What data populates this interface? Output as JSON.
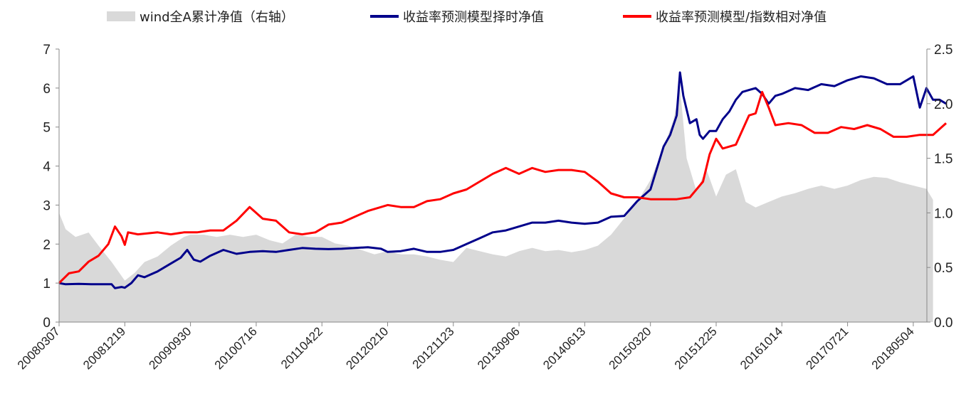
{
  "chart_data": {
    "type": "line",
    "legend_placement": "top",
    "grid": false,
    "x_tick_labels": [
      "20080307",
      "20081219",
      "20090930",
      "20100716",
      "20110422",
      "20120210",
      "20121123",
      "20130906",
      "20140613",
      "20150320",
      "20151225",
      "20161014",
      "20170721",
      "20180504"
    ],
    "left_axis": {
      "ylim": [
        0,
        7
      ],
      "ticks": [
        "0",
        "1",
        "2",
        "3",
        "4",
        "5",
        "6",
        "7"
      ]
    },
    "right_axis": {
      "ylim": [
        0,
        2.5
      ],
      "ticks": [
        "0.0",
        "0.5",
        "1.0",
        "1.5",
        "2.0",
        "2.5"
      ]
    },
    "series": [
      {
        "name": "wind全A累计净值（右轴）",
        "kind": "area",
        "axis": "right",
        "color": "#d9d9d9",
        "points": [
          [
            0,
            1.0
          ],
          [
            0.1,
            0.85
          ],
          [
            0.25,
            0.78
          ],
          [
            0.45,
            0.82
          ],
          [
            0.6,
            0.7
          ],
          [
            0.8,
            0.55
          ],
          [
            1.0,
            0.38
          ],
          [
            1.15,
            0.45
          ],
          [
            1.3,
            0.55
          ],
          [
            1.5,
            0.6
          ],
          [
            1.7,
            0.7
          ],
          [
            1.9,
            0.78
          ],
          [
            2.0,
            0.8
          ],
          [
            2.2,
            0.8
          ],
          [
            2.4,
            0.78
          ],
          [
            2.6,
            0.8
          ],
          [
            2.8,
            0.78
          ],
          [
            3.0,
            0.8
          ],
          [
            3.2,
            0.75
          ],
          [
            3.4,
            0.72
          ],
          [
            3.6,
            0.8
          ],
          [
            3.8,
            0.78
          ],
          [
            4.0,
            0.78
          ],
          [
            4.2,
            0.72
          ],
          [
            4.4,
            0.7
          ],
          [
            4.6,
            0.66
          ],
          [
            4.8,
            0.62
          ],
          [
            5.0,
            0.65
          ],
          [
            5.2,
            0.62
          ],
          [
            5.4,
            0.62
          ],
          [
            5.6,
            0.6
          ],
          [
            5.8,
            0.57
          ],
          [
            6.0,
            0.55
          ],
          [
            6.2,
            0.68
          ],
          [
            6.4,
            0.65
          ],
          [
            6.6,
            0.62
          ],
          [
            6.8,
            0.6
          ],
          [
            7.0,
            0.65
          ],
          [
            7.2,
            0.68
          ],
          [
            7.4,
            0.65
          ],
          [
            7.6,
            0.66
          ],
          [
            7.8,
            0.64
          ],
          [
            8.0,
            0.66
          ],
          [
            8.2,
            0.7
          ],
          [
            8.4,
            0.8
          ],
          [
            8.6,
            0.95
          ],
          [
            8.8,
            1.1
          ],
          [
            9.0,
            1.3
          ],
          [
            9.2,
            1.6
          ],
          [
            9.35,
            1.85
          ],
          [
            9.45,
            2.15
          ],
          [
            9.55,
            1.5
          ],
          [
            9.7,
            1.2
          ],
          [
            9.85,
            1.4
          ],
          [
            10.0,
            1.15
          ],
          [
            10.15,
            1.35
          ],
          [
            10.3,
            1.4
          ],
          [
            10.45,
            1.1
          ],
          [
            10.6,
            1.05
          ],
          [
            10.8,
            1.1
          ],
          [
            11.0,
            1.15
          ],
          [
            11.2,
            1.18
          ],
          [
            11.4,
            1.22
          ],
          [
            11.6,
            1.25
          ],
          [
            11.8,
            1.22
          ],
          [
            12.0,
            1.25
          ],
          [
            12.2,
            1.3
          ],
          [
            12.4,
            1.33
          ],
          [
            12.6,
            1.32
          ],
          [
            12.8,
            1.28
          ],
          [
            13.0,
            1.25
          ],
          [
            13.2,
            1.22
          ],
          [
            13.3,
            1.12
          ]
        ]
      },
      {
        "name": "收益率预测模型择时净值",
        "kind": "line",
        "axis": "left",
        "color": "#00008b",
        "points": [
          [
            0,
            1.0
          ],
          [
            0.1,
            0.97
          ],
          [
            0.3,
            0.98
          ],
          [
            0.5,
            0.97
          ],
          [
            0.7,
            0.97
          ],
          [
            0.8,
            0.97
          ],
          [
            0.85,
            0.87
          ],
          [
            0.95,
            0.9
          ],
          [
            1.0,
            0.88
          ],
          [
            1.1,
            1.0
          ],
          [
            1.2,
            1.2
          ],
          [
            1.3,
            1.15
          ],
          [
            1.5,
            1.3
          ],
          [
            1.7,
            1.5
          ],
          [
            1.85,
            1.65
          ],
          [
            1.95,
            1.85
          ],
          [
            2.05,
            1.6
          ],
          [
            2.15,
            1.55
          ],
          [
            2.3,
            1.7
          ],
          [
            2.5,
            1.85
          ],
          [
            2.7,
            1.75
          ],
          [
            2.9,
            1.8
          ],
          [
            3.1,
            1.82
          ],
          [
            3.3,
            1.8
          ],
          [
            3.5,
            1.85
          ],
          [
            3.7,
            1.9
          ],
          [
            3.9,
            1.88
          ],
          [
            4.1,
            1.87
          ],
          [
            4.3,
            1.88
          ],
          [
            4.5,
            1.9
          ],
          [
            4.7,
            1.92
          ],
          [
            4.9,
            1.88
          ],
          [
            5.0,
            1.8
          ],
          [
            5.2,
            1.82
          ],
          [
            5.4,
            1.88
          ],
          [
            5.6,
            1.8
          ],
          [
            5.8,
            1.8
          ],
          [
            6.0,
            1.85
          ],
          [
            6.2,
            2.0
          ],
          [
            6.4,
            2.15
          ],
          [
            6.6,
            2.3
          ],
          [
            6.8,
            2.35
          ],
          [
            7.0,
            2.45
          ],
          [
            7.2,
            2.55
          ],
          [
            7.4,
            2.55
          ],
          [
            7.6,
            2.6
          ],
          [
            7.8,
            2.55
          ],
          [
            8.0,
            2.52
          ],
          [
            8.2,
            2.55
          ],
          [
            8.4,
            2.7
          ],
          [
            8.6,
            2.72
          ],
          [
            8.8,
            3.1
          ],
          [
            9.0,
            3.4
          ],
          [
            9.2,
            4.5
          ],
          [
            9.3,
            4.8
          ],
          [
            9.4,
            5.3
          ],
          [
            9.45,
            6.4
          ],
          [
            9.5,
            5.8
          ],
          [
            9.6,
            5.1
          ],
          [
            9.7,
            5.2
          ],
          [
            9.75,
            4.8
          ],
          [
            9.8,
            4.7
          ],
          [
            9.9,
            4.9
          ],
          [
            10.0,
            4.9
          ],
          [
            10.1,
            5.2
          ],
          [
            10.2,
            5.4
          ],
          [
            10.3,
            5.7
          ],
          [
            10.4,
            5.9
          ],
          [
            10.5,
            5.95
          ],
          [
            10.6,
            6.0
          ],
          [
            10.7,
            5.85
          ],
          [
            10.8,
            5.6
          ],
          [
            10.9,
            5.8
          ],
          [
            11.0,
            5.85
          ],
          [
            11.2,
            6.0
          ],
          [
            11.4,
            5.95
          ],
          [
            11.6,
            6.1
          ],
          [
            11.8,
            6.05
          ],
          [
            12.0,
            6.2
          ],
          [
            12.2,
            6.3
          ],
          [
            12.4,
            6.25
          ],
          [
            12.6,
            6.1
          ],
          [
            12.8,
            6.1
          ],
          [
            13.0,
            6.3
          ],
          [
            13.1,
            5.5
          ],
          [
            13.2,
            6.0
          ],
          [
            13.3,
            5.7
          ],
          [
            13.4,
            5.7
          ],
          [
            13.5,
            5.6
          ]
        ]
      },
      {
        "name": "收益率预测模型/指数相对净值",
        "kind": "line",
        "axis": "left",
        "color": "#ff0000",
        "points": [
          [
            0,
            1.0
          ],
          [
            0.15,
            1.25
          ],
          [
            0.3,
            1.3
          ],
          [
            0.45,
            1.55
          ],
          [
            0.6,
            1.7
          ],
          [
            0.75,
            2.0
          ],
          [
            0.85,
            2.45
          ],
          [
            0.95,
            2.2
          ],
          [
            1.0,
            1.98
          ],
          [
            1.05,
            2.3
          ],
          [
            1.2,
            2.25
          ],
          [
            1.5,
            2.3
          ],
          [
            1.7,
            2.25
          ],
          [
            1.9,
            2.3
          ],
          [
            2.1,
            2.3
          ],
          [
            2.3,
            2.35
          ],
          [
            2.5,
            2.35
          ],
          [
            2.7,
            2.6
          ],
          [
            2.9,
            2.95
          ],
          [
            3.1,
            2.65
          ],
          [
            3.3,
            2.6
          ],
          [
            3.5,
            2.3
          ],
          [
            3.7,
            2.25
          ],
          [
            3.9,
            2.3
          ],
          [
            4.1,
            2.5
          ],
          [
            4.3,
            2.55
          ],
          [
            4.5,
            2.7
          ],
          [
            4.7,
            2.85
          ],
          [
            4.9,
            2.95
          ],
          [
            5.0,
            3.0
          ],
          [
            5.2,
            2.95
          ],
          [
            5.4,
            2.95
          ],
          [
            5.6,
            3.1
          ],
          [
            5.8,
            3.15
          ],
          [
            6.0,
            3.3
          ],
          [
            6.2,
            3.4
          ],
          [
            6.4,
            3.6
          ],
          [
            6.6,
            3.8
          ],
          [
            6.8,
            3.95
          ],
          [
            7.0,
            3.8
          ],
          [
            7.2,
            3.95
          ],
          [
            7.4,
            3.85
          ],
          [
            7.6,
            3.9
          ],
          [
            7.8,
            3.9
          ],
          [
            8.0,
            3.85
          ],
          [
            8.2,
            3.6
          ],
          [
            8.4,
            3.3
          ],
          [
            8.6,
            3.2
          ],
          [
            8.8,
            3.2
          ],
          [
            9.0,
            3.15
          ],
          [
            9.2,
            3.15
          ],
          [
            9.4,
            3.15
          ],
          [
            9.6,
            3.2
          ],
          [
            9.7,
            3.4
          ],
          [
            9.8,
            3.6
          ],
          [
            9.9,
            4.3
          ],
          [
            10.0,
            4.7
          ],
          [
            10.1,
            4.45
          ],
          [
            10.3,
            4.55
          ],
          [
            10.5,
            5.3
          ],
          [
            10.6,
            5.35
          ],
          [
            10.7,
            5.9
          ],
          [
            10.8,
            5.5
          ],
          [
            10.9,
            5.05
          ],
          [
            11.1,
            5.1
          ],
          [
            11.3,
            5.05
          ],
          [
            11.5,
            4.85
          ],
          [
            11.7,
            4.85
          ],
          [
            11.9,
            5.0
          ],
          [
            12.1,
            4.95
          ],
          [
            12.3,
            5.05
          ],
          [
            12.5,
            4.95
          ],
          [
            12.7,
            4.75
          ],
          [
            12.9,
            4.75
          ],
          [
            13.1,
            4.8
          ],
          [
            13.3,
            4.8
          ],
          [
            13.5,
            5.1
          ]
        ]
      }
    ]
  }
}
